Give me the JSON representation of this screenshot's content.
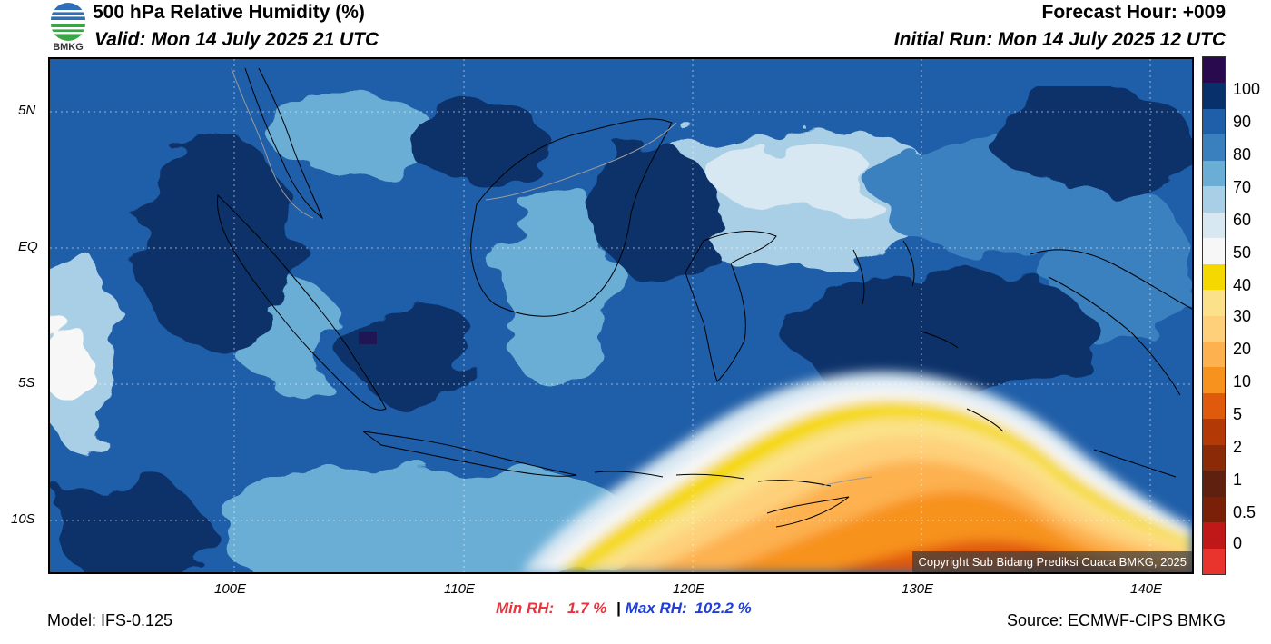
{
  "header": {
    "title": "500 hPa Relative Humidity (%)",
    "valid": "Valid: Mon 14 July 2025 21 UTC",
    "forecast_hour": "Forecast Hour: +009",
    "initial_run": "Initial Run: Mon 14 July 2025 12 UTC",
    "logo_text": "BMKG"
  },
  "axes": {
    "lat_ticks": [
      "5N",
      "EQ",
      "5S",
      "10S"
    ],
    "lon_ticks": [
      "100E",
      "110E",
      "120E",
      "130E",
      "140E"
    ]
  },
  "colorbar": {
    "labels": [
      "100",
      "90",
      "80",
      "70",
      "60",
      "50",
      "40",
      "30",
      "20",
      "10",
      "5",
      "2",
      "1",
      "0.5",
      "0"
    ],
    "colors": [
      "#2a0a4e",
      "#08306b",
      "#1f5ea8",
      "#3a80bf",
      "#6aaed6",
      "#a9cfe6",
      "#d8e8f3",
      "#f7f7f7",
      "#f5d800",
      "#fbe28a",
      "#fed07a",
      "#fdb14f",
      "#f7921e",
      "#e05a0c",
      "#b33a07",
      "#8b2a06",
      "#602010",
      "#7a2008",
      "#c01818",
      "#e8342c"
    ]
  },
  "stats": {
    "min_label": "Min RH:",
    "min_value": "1.7 %",
    "separator": "|",
    "max_label": "Max RH:",
    "max_value": "102.2 %"
  },
  "footer": {
    "model": "Model: IFS-0.125",
    "source": "Source: ECMWF-CIPS BMKG",
    "copyright": "Copyright Sub Bidang Prediksi Cuaca BMKG, 2025"
  }
}
